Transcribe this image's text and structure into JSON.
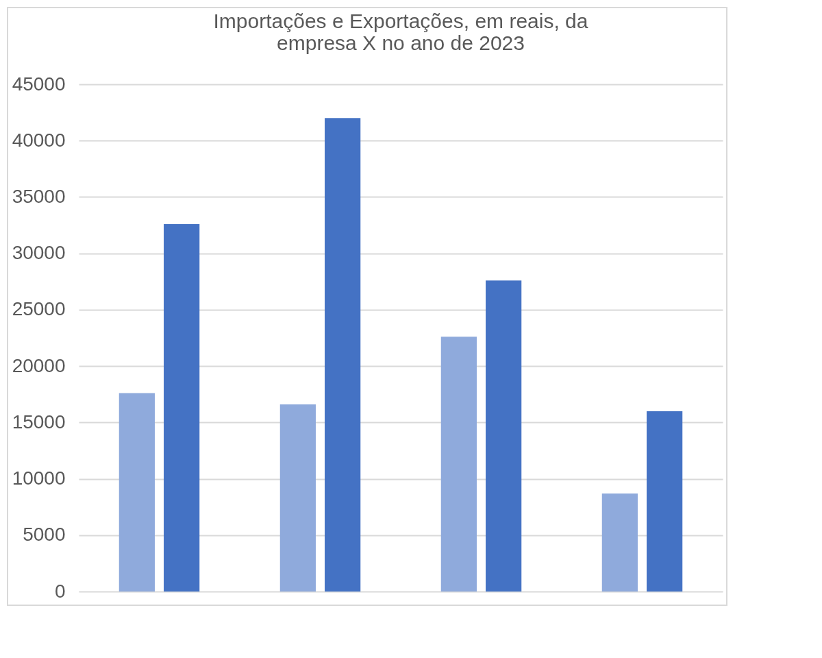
{
  "chart_data": {
    "type": "bar",
    "title": "Importações e Exportações, em reais, da empresa X no ano de 2023",
    "categories": [
      null,
      null,
      null,
      null
    ],
    "series": [
      {
        "color": "#8faadc",
        "values": [
          17600,
          16600,
          22600,
          8700
        ]
      },
      {
        "color": "#4472c4",
        "values": [
          32600,
          42000,
          27600,
          16000
        ]
      }
    ],
    "ylim": [
      0,
      45000
    ],
    "yticks": [
      0,
      5000,
      10000,
      15000,
      20000,
      25000,
      30000,
      35000,
      40000,
      45000
    ],
    "grid": "y",
    "legend": false
  }
}
